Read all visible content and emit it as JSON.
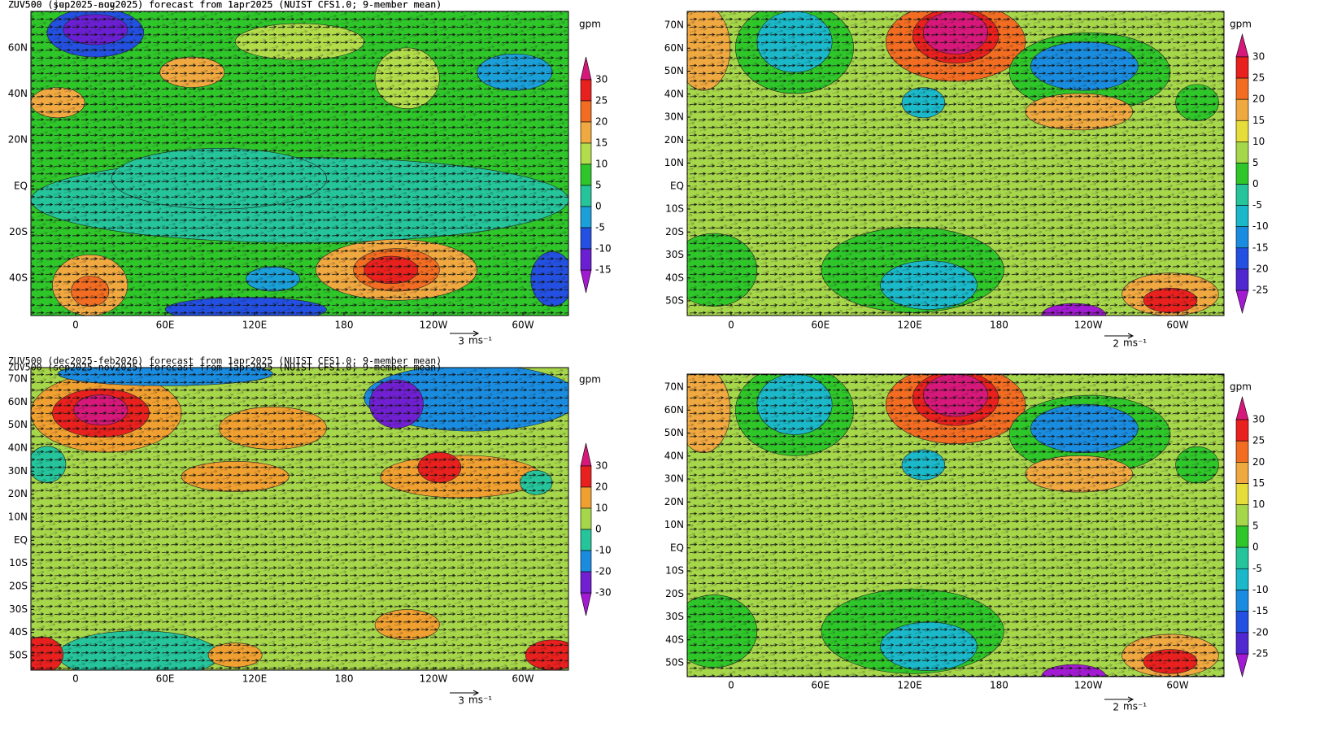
{
  "panels": [
    {
      "title": "ZUV500 (jun2025-aug2025) forecast from 1apr2025 (NUIST CFS1.0; 9-member mean)",
      "unit": "gpm",
      "lat_labels": [
        "60N",
        "40N",
        "20N",
        "EQ",
        "20S",
        "40S"
      ],
      "lon_labels": [
        "0",
        "60E",
        "120E",
        "180",
        "120W",
        "60W"
      ],
      "colorbar": {
        "labels": [
          30,
          25,
          20,
          15,
          10,
          5,
          0,
          -5,
          -10,
          -15
        ],
        "colors": [
          "#d6187a",
          "#e8201e",
          "#f26d22",
          "#f0a840",
          "#b2dc4a",
          "#2fc62a",
          "#25c49a",
          "#1a9fd8",
          "#2350e0",
          "#6a1fd0",
          "#a21ad2"
        ]
      },
      "scale_value": "3",
      "scale_unit": "ms⁻¹"
    },
    {
      "title": "ZUV500 (sep2025-nov2025) forecast from 1apr2025 (NUIST CFS1.0; 9-member mean)",
      "unit": "gpm",
      "lat_labels": [
        "70N",
        "60N",
        "50N",
        "40N",
        "30N",
        "20N",
        "10N",
        "EQ",
        "10S",
        "20S",
        "30S",
        "40S",
        "50S"
      ],
      "lon_labels": [
        "0",
        "60E",
        "120E",
        "180",
        "120W",
        "60W"
      ],
      "colorbar": {
        "labels": [
          30,
          25,
          20,
          15,
          10,
          5,
          0,
          -5,
          -10,
          -15,
          -20,
          -25
        ],
        "colors": [
          "#d6187a",
          "#e8201e",
          "#f26d22",
          "#f0a840",
          "#e6dc3a",
          "#a6d64a",
          "#2fc62a",
          "#25c49a",
          "#1ab8c8",
          "#1a8ce0",
          "#2350e0",
          "#5028d0",
          "#a21ad2"
        ]
      },
      "scale_value": "2",
      "scale_unit": "ms⁻¹"
    },
    {
      "title": "ZUV500 (dec2025-feb2026) forecast from 1apr2025 (NUIST CFS1.0; 9-member mean)",
      "unit": "gpm",
      "lat_labels": [
        "70N",
        "60N",
        "50N",
        "40N",
        "30N",
        "20N",
        "10N",
        "EQ",
        "10S",
        "20S",
        "30S",
        "40S",
        "50S"
      ],
      "lon_labels": [
        "0",
        "60E",
        "120E",
        "180",
        "120W",
        "60W"
      ],
      "colorbar": {
        "labels": [
          30,
          20,
          10,
          0,
          -10,
          -20,
          -30
        ],
        "colors": [
          "#d6187a",
          "#e8201e",
          "#f0a030",
          "#a6d64a",
          "#25c49a",
          "#1a8ce0",
          "#7020d0",
          "#a21ad2"
        ]
      },
      "scale_value": "3",
      "scale_unit": "ms⁻¹"
    },
    {
      "title": "ZUV500 (sep2025-nov2025) forecast from 1apr2025 (NUIST CFS1.0; 9-member mean)",
      "unit": "gpm",
      "lat_labels": [
        "70N",
        "60N",
        "50N",
        "40N",
        "30N",
        "20N",
        "10N",
        "EQ",
        "10S",
        "20S",
        "30S",
        "40S",
        "50S"
      ],
      "lon_labels": [
        "0",
        "60E",
        "120E",
        "180",
        "120W",
        "60W"
      ],
      "colorbar": {
        "labels": [
          30,
          25,
          20,
          15,
          10,
          5,
          0,
          -5,
          -10,
          -15,
          -20,
          -25
        ],
        "colors": [
          "#d6187a",
          "#e8201e",
          "#f26d22",
          "#f0a840",
          "#e6dc3a",
          "#a6d64a",
          "#2fc62a",
          "#25c49a",
          "#1ab8c8",
          "#1a8ce0",
          "#2350e0",
          "#5028d0",
          "#a21ad2"
        ]
      },
      "scale_value": "2",
      "scale_unit": "ms⁻¹"
    }
  ]
}
